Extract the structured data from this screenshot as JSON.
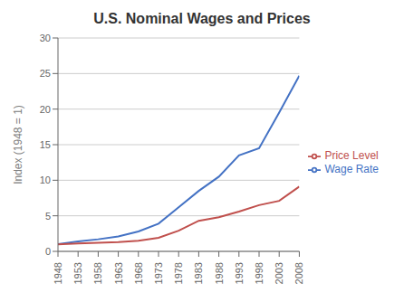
{
  "chart_data": {
    "type": "line",
    "title": "U.S. Nominal Wages and Prices",
    "ylabel": "Index (1948 = 1)",
    "x": [
      1948,
      1953,
      1958,
      1963,
      1968,
      1973,
      1978,
      1983,
      1988,
      1993,
      1998,
      2003,
      2008
    ],
    "series": [
      {
        "name": "Wage Rate",
        "color": "#4472C4",
        "values": [
          1.0,
          1.4,
          1.7,
          2.1,
          2.8,
          3.9,
          6.2,
          8.5,
          10.5,
          13.5,
          14.5,
          19.5,
          24.7
        ]
      },
      {
        "name": "Price Level",
        "color": "#C0504D",
        "values": [
          1.0,
          1.1,
          1.2,
          1.3,
          1.5,
          1.9,
          2.9,
          4.3,
          4.8,
          5.6,
          6.5,
          7.1,
          9.1
        ]
      }
    ],
    "xlim": [
      1948,
      2008
    ],
    "xticks": [
      1948,
      1953,
      1958,
      1963,
      1968,
      1973,
      1978,
      1983,
      1988,
      1993,
      1998,
      2003,
      2008
    ],
    "ylim": [
      0,
      30
    ],
    "yticks": [
      0,
      5,
      10,
      15,
      20,
      25,
      30
    ],
    "grid": "y",
    "legend": "right"
  }
}
